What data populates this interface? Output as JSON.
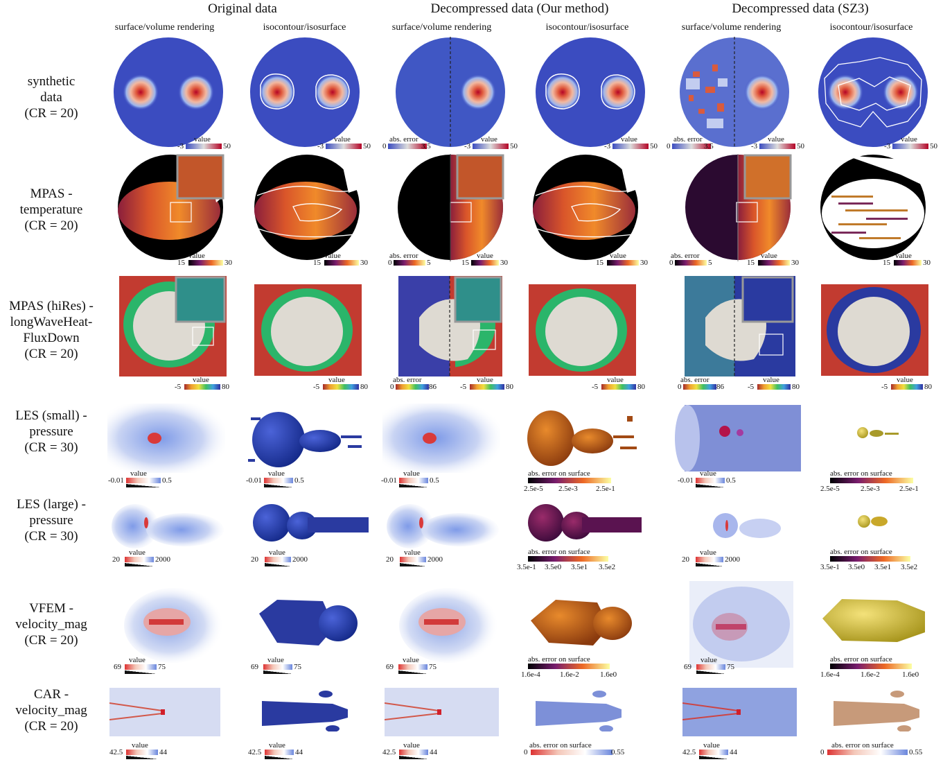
{
  "column_groups": [
    "Original data",
    "Decompressed data (Our method)",
    "Decompressed data (SZ3)"
  ],
  "column_subtitles": [
    "surface/volume rendering",
    "isocontour/isosurface"
  ],
  "rows": [
    {
      "label": [
        "synthetic",
        "data",
        "(CR = 20)"
      ]
    },
    {
      "label": [
        "MPAS -",
        "temperature",
        "(CR = 20)"
      ]
    },
    {
      "label": [
        "MPAS (hiRes) -",
        "longWaveHeat-",
        "FluxDown",
        "(CR = 20)"
      ]
    },
    {
      "label": [
        "LES (small) -",
        "pressure",
        "(CR = 30)"
      ]
    },
    {
      "label": [
        "LES (large) -",
        "pressure",
        "(CR = 30)"
      ]
    },
    {
      "label": [
        "VFEM -",
        "velocity_mag",
        "(CR = 20)"
      ]
    },
    {
      "label": [
        "CAR -",
        "velocity_mag",
        "(CR = 20)"
      ]
    }
  ],
  "colorbars": {
    "value": "value",
    "abs_error": "abs. error",
    "abs_error_surface": "abs. error on surface",
    "syn_min": "-3",
    "syn_max": "50",
    "syn_err_min": "0",
    "syn_err_max": "3.5",
    "temp_min": "15",
    "temp_max": "30",
    "temp_err_min": "0",
    "temp_err_max": "5",
    "hires_min": "-5",
    "hires_max": "80",
    "hires_err_min": "0",
    "hires_err_max": "86",
    "lessmall_min": "-0.01",
    "lessmall_max": "0.5",
    "lessmall_err": [
      "2.5e-5",
      "2.5e-3",
      "2.5e-1"
    ],
    "leslarge_min": "20",
    "leslarge_max": "2000",
    "leslarge_err": [
      "3.5e-1",
      "3.5e0",
      "3.5e1",
      "3.5e2"
    ],
    "vfem_min": "69",
    "vfem_max": "75",
    "vfem_err": [
      "1.6e-4",
      "1.6e-2",
      "1.6e0"
    ],
    "car_min": "42.5",
    "car_max": "44",
    "car_err_min": "0",
    "car_err_max_ours": "0.55",
    "car_err_max_sz3": "0.55"
  },
  "colors": {
    "coolwarm": "#3b4cc0",
    "hot_red": "#b40426",
    "inferno_dark": "#000004",
    "sea_red": "#c23b30",
    "ice": "#dedad2"
  }
}
